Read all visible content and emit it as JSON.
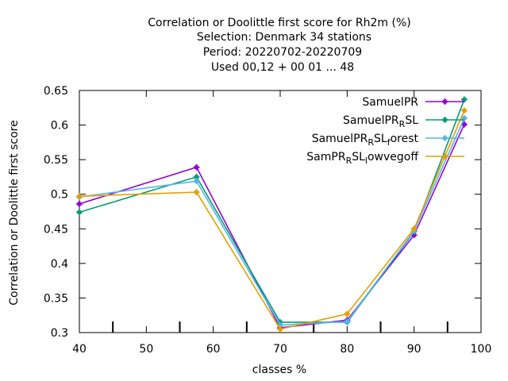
{
  "chart_data": {
    "type": "line",
    "title_lines": [
      "Correlation or Doolittle first score  for Rh2m (%)",
      "Selection: Denmark     34 stations",
      "Period: 20220702-20220709",
      "Used  00,12  + 00 01 ... 48"
    ],
    "xlabel": "classes %",
    "ylabel": "Correlation or Doolittle first score",
    "xlim": [
      40,
      100
    ],
    "ylim": [
      0.3,
      0.65
    ],
    "xticks": [
      40,
      50,
      60,
      70,
      80,
      90,
      100
    ],
    "yticks": [
      0.3,
      0.35,
      0.4,
      0.45,
      0.5,
      0.55,
      0.6,
      0.65
    ],
    "x_minor_ticks": [
      45,
      55,
      65,
      75,
      85,
      95
    ],
    "grid": false,
    "legend_position": "top-right",
    "series": [
      {
        "name": "SamuelPR",
        "name_base": "SamuelPR",
        "name_sub": "",
        "name_tail": "",
        "color": "#9400d3",
        "x": [
          40,
          57.5,
          70,
          80,
          90,
          97.5
        ],
        "y": [
          0.486,
          0.539,
          0.307,
          0.318,
          0.441,
          0.601
        ]
      },
      {
        "name": "SamuelPR_RSL",
        "name_base": "SamuelPR",
        "name_sub": "R",
        "name_tail": "SL",
        "color": "#009e73",
        "x": [
          40,
          57.5,
          70,
          80,
          90,
          97.5
        ],
        "y": [
          0.474,
          0.525,
          0.315,
          0.315,
          0.446,
          0.637
        ]
      },
      {
        "name": "SamuelPR_RSL_forest",
        "name_base": "SamuelPR",
        "name_sub": "R",
        "name_tail": "SL",
        "name_sub2": "f",
        "name_tail2": "orest",
        "color": "#56b4e9",
        "x": [
          40,
          57.5,
          70,
          80,
          90,
          97.5
        ],
        "y": [
          0.496,
          0.519,
          0.311,
          0.316,
          0.447,
          0.61
        ]
      },
      {
        "name": "SamPR_RSL_lowvegoff",
        "name_base": "SamPR",
        "name_sub": "R",
        "name_tail": "SL",
        "name_sub2": "l",
        "name_tail2": "owvegoff",
        "color": "#e69f00",
        "x": [
          40,
          57.5,
          70,
          80,
          90,
          97.5
        ],
        "y": [
          0.497,
          0.503,
          0.305,
          0.327,
          0.45,
          0.621
        ]
      }
    ]
  }
}
